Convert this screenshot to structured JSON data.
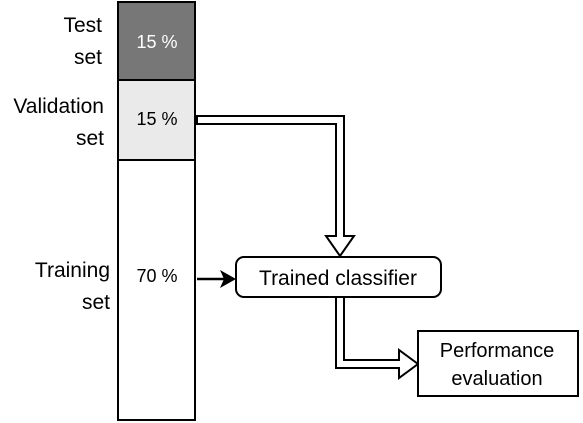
{
  "segments": [
    {
      "label_line1": "Test",
      "label_line2": "set",
      "percent": "15 %",
      "fill": "#777777"
    },
    {
      "label_line1": "Validation",
      "label_line2": "set",
      "percent": "15 %",
      "fill": "#eaeaea"
    },
    {
      "label_line1": "Training",
      "label_line2": "set",
      "percent": "70 %",
      "fill": "#ffffff"
    }
  ],
  "classifier": {
    "label": "Trained classifier"
  },
  "evaluation": {
    "line1": "Performance",
    "line2": "evaluation"
  }
}
